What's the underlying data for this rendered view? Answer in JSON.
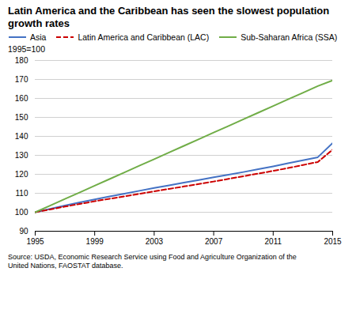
{
  "chart_data": {
    "type": "line",
    "title": "Latin America and the Caribbean has seen the slowest population growth rates",
    "ylabel": "1995=100",
    "source": "Source: USDA, Economic Research Service using Food and Agriculture Organization of the\nUnited Nations, FAOSTAT database.",
    "x": [
      1995,
      1996,
      1997,
      1998,
      1999,
      2000,
      2001,
      2002,
      2003,
      2004,
      2005,
      2006,
      2007,
      2008,
      2009,
      2010,
      2011,
      2012,
      2013,
      2014,
      2015
    ],
    "series": [
      {
        "name": "Asia",
        "color": "#4472C4",
        "line_style": "solid",
        "values": [
          100.0,
          101.8,
          103.5,
          105.2,
          106.8,
          108.3,
          109.8,
          111.3,
          112.8,
          114.2,
          115.6,
          117.0,
          118.4,
          119.8,
          121.2,
          122.7,
          124.2,
          125.8,
          127.4,
          129.0,
          136.5
        ]
      },
      {
        "name": "Latin America and Caribbean (LAC)",
        "color": "#CC0000",
        "line_style": "dashed",
        "values": [
          100.0,
          101.5,
          103.0,
          104.4,
          105.8,
          107.1,
          108.4,
          109.7,
          111.0,
          112.3,
          113.6,
          114.9,
          116.2,
          117.6,
          119.0,
          120.4,
          121.8,
          123.3,
          124.9,
          126.5,
          133.0
        ]
      },
      {
        "name": "Sub-Saharan Africa (SSA)",
        "color": "#70AD47",
        "line_style": "solid",
        "values": [
          100.0,
          103.5,
          107.0,
          110.5,
          114.0,
          117.5,
          121.0,
          124.5,
          128.0,
          131.5,
          135.0,
          138.5,
          142.0,
          145.5,
          149.0,
          152.5,
          156.0,
          159.5,
          163.0,
          166.5,
          169.5
        ]
      }
    ],
    "xlim": [
      1995,
      2015
    ],
    "xticks": [
      1995,
      1999,
      2003,
      2007,
      2011,
      2015
    ],
    "ylim": [
      90,
      180
    ],
    "yticks": [
      90,
      100,
      110,
      120,
      130,
      140,
      150,
      160,
      170,
      180
    ],
    "grid": "y",
    "legend": "upper left"
  }
}
